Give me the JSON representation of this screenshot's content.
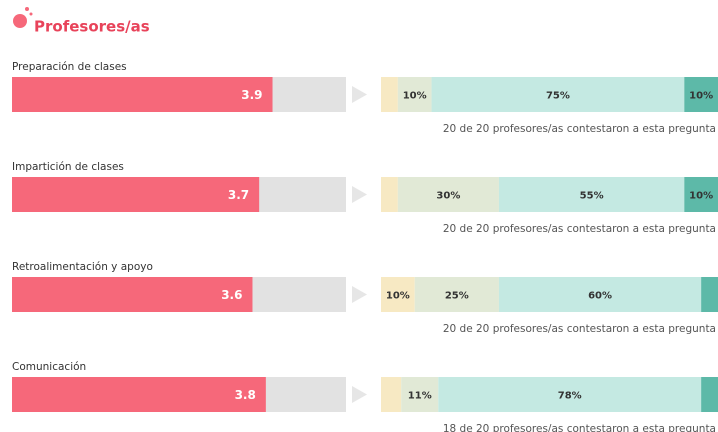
{
  "header": {
    "title": "Profesores/as"
  },
  "score_lim": [
    0,
    5
  ],
  "segment_colors": [
    "#f7e9c3",
    "#e1e9d6",
    "#c4e9e2",
    "#5db9a8"
  ],
  "score_color": "#f6687a",
  "items": [
    {
      "label": "Preparación de clases",
      "score": 3.9,
      "segments": [
        5,
        10,
        75,
        10
      ],
      "value_labels": [
        null,
        "10%",
        "75%",
        "10%"
      ],
      "responses": "20 de 20 profesores/as contestaron a esta pregunta"
    },
    {
      "label": "Impartición de clases",
      "score": 3.7,
      "segments": [
        5,
        30,
        55,
        10
      ],
      "value_labels": [
        null,
        "30%",
        "55%",
        "10%"
      ],
      "responses": "20 de 20 profesores/as contestaron a esta pregunta"
    },
    {
      "label": "Retroalimentación y apoyo",
      "score": 3.6,
      "segments": [
        10,
        25,
        60,
        5
      ],
      "value_labels": [
        "10%",
        "25%",
        "60%",
        null
      ],
      "responses": "20 de 20 profesores/as contestaron a esta pregunta"
    },
    {
      "label": "Comunicación",
      "score": 3.8,
      "segments": [
        6,
        11,
        78,
        5
      ],
      "value_labels": [
        null,
        "11%",
        "78%",
        null
      ],
      "responses": "18 de 20 profesores/as contestaron a esta pregunta"
    }
  ]
}
